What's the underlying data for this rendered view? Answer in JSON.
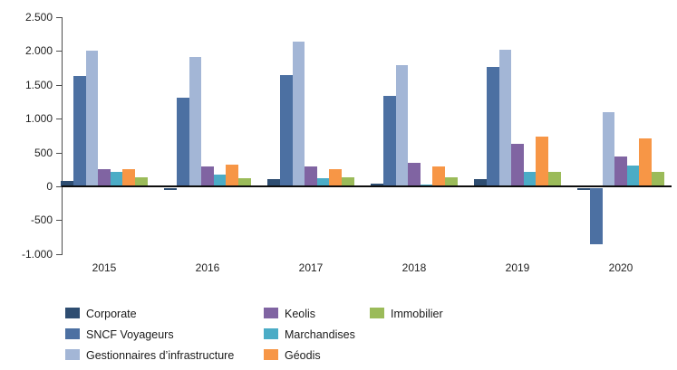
{
  "chart_data": {
    "type": "bar",
    "title": "",
    "xlabel": "",
    "ylabel": "",
    "categories": [
      "2015",
      "2016",
      "2017",
      "2018",
      "2019",
      "2020"
    ],
    "series": [
      {
        "name": "Corporate",
        "color": "#2E4D71",
        "values": [
          80,
          -30,
          110,
          40,
          110,
          -30
        ]
      },
      {
        "name": "SNCF Voyageurs",
        "color": "#4C70A2",
        "values": [
          1630,
          1310,
          1640,
          1340,
          1760,
          -830
        ]
      },
      {
        "name": "Gestionnaires d’infrastructure",
        "color": "#A3B6D6",
        "values": [
          2010,
          1910,
          2140,
          1790,
          2020,
          1090
        ]
      },
      {
        "name": "Keolis",
        "color": "#8064A2",
        "values": [
          250,
          300,
          300,
          350,
          630,
          440
        ]
      },
      {
        "name": "Marchandises",
        "color": "#4BACC6",
        "values": [
          220,
          170,
          120,
          30,
          220,
          310
        ]
      },
      {
        "name": "Géodis",
        "color": "#F79646",
        "values": [
          250,
          320,
          250,
          300,
          730,
          710
        ]
      },
      {
        "name": "Immobilier",
        "color": "#9BBB59",
        "values": [
          130,
          120,
          140,
          130,
          210,
          210
        ]
      }
    ],
    "ylim": [
      -1000,
      2500
    ],
    "y_ticks": [
      {
        "label": "2.500",
        "value": 2500
      },
      {
        "label": "2.000",
        "value": 2000
      },
      {
        "label": "1.500",
        "value": 1500
      },
      {
        "label": "1.000",
        "value": 1000
      },
      {
        "label": "500",
        "value": 500
      },
      {
        "label": "0",
        "value": 0
      },
      {
        "label": "-500",
        "value": -500
      },
      {
        "label": "-1.000",
        "value": -1000
      }
    ],
    "grid": false,
    "legend_position": "bottom",
    "legend_columns": [
      [
        "Corporate",
        "SNCF Voyageurs",
        "Gestionnaires d’infrastructure"
      ],
      [
        "Keolis",
        "Marchandises",
        "Géodis"
      ],
      [
        "Immobilier"
      ]
    ]
  }
}
